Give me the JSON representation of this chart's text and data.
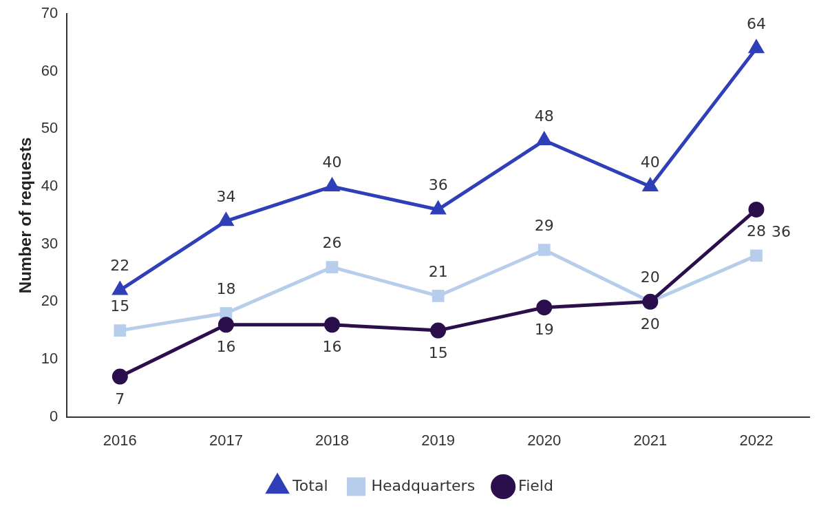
{
  "chart_data": {
    "type": "line",
    "ylabel": "Number of requests",
    "categories": [
      "2016",
      "2017",
      "2018",
      "2019",
      "2020",
      "2021",
      "2022"
    ],
    "series": [
      {
        "name": "Total",
        "color": "#2e3fb8",
        "marker": "triangle",
        "values": [
          22,
          34,
          40,
          36,
          48,
          40,
          64
        ]
      },
      {
        "name": "Headquarters",
        "color": "#b6cdeb",
        "marker": "square",
        "values": [
          15,
          18,
          26,
          21,
          29,
          20,
          28
        ]
      },
      {
        "name": "Field",
        "color": "#2b0f4c",
        "marker": "circle",
        "values": [
          7,
          16,
          16,
          15,
          19,
          20,
          36
        ]
      }
    ],
    "ylim": [
      0,
      70
    ],
    "yticks": [
      0,
      10,
      20,
      30,
      40,
      50,
      60,
      70
    ],
    "grid": false,
    "legend": "bottom",
    "data_labels": true,
    "line_style": "solid"
  }
}
